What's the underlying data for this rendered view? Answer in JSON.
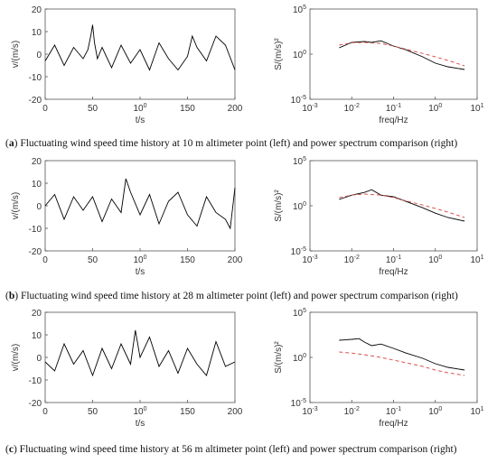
{
  "captions": [
    {
      "letter": "a",
      "text": "Fluctuating wind speed time history at 10 m altimeter point (left) and power spectrum comparison (right)"
    },
    {
      "letter": "b",
      "text": "Fluctuating wind speed time history at 28 m altimeter point (left) and power spectrum comparison (right)"
    },
    {
      "letter": "c",
      "text": "Fluctuating wind speed time history at 56 m altimeter point (left) and power spectrum comparison (right)"
    }
  ],
  "chart_data": [
    {
      "panel": "a",
      "type": "line",
      "plot": "time-history",
      "xlabel": "t/s",
      "ylabel": "v/(m/s)",
      "xlim": [
        0,
        200
      ],
      "ylim": [
        -20,
        20
      ],
      "xticks": [
        "0",
        "50",
        "100",
        "150",
        "200"
      ],
      "yticks": [
        "20",
        "10",
        "0",
        "-10",
        "-20"
      ],
      "series": [
        {
          "color": "#000000",
          "x": [
            0,
            10,
            20,
            30,
            40,
            45,
            48,
            50,
            52,
            55,
            60,
            70,
            80,
            90,
            100,
            110,
            120,
            130,
            140,
            150,
            155,
            160,
            170,
            180,
            190,
            200
          ],
          "y": [
            -3,
            4,
            -5,
            3,
            -2,
            2,
            8,
            13,
            5,
            -2,
            3,
            -6,
            4,
            -4,
            2,
            -7,
            5,
            -2,
            -7,
            -1,
            8,
            3,
            -3,
            8,
            4,
            -7
          ]
        }
      ]
    },
    {
      "panel": "a",
      "type": "line",
      "plot": "spectrum",
      "xlabel": "freq/Hz",
      "ylabel": "S/(m/s)²",
      "xscale": "log",
      "yscale": "log",
      "xlim": [
        0.001,
        10
      ],
      "ylim": [
        1e-05,
        100000
      ],
      "xticks": [
        "10-3",
        "10-2",
        "10-1",
        "100",
        "101"
      ],
      "yticks": [
        "105",
        "100",
        "10-5"
      ],
      "series": [
        {
          "style": "solid",
          "color": "#000000",
          "x": [
            0.005,
            0.01,
            0.02,
            0.03,
            0.05,
            0.1,
            0.2,
            0.5,
            1,
            2,
            5
          ],
          "y": [
            5,
            20,
            25,
            20,
            30,
            8,
            3,
            0.5,
            0.1,
            0.04,
            0.02
          ]
        },
        {
          "style": "dashed",
          "color": "#d9534f",
          "x": [
            0.005,
            0.01,
            0.02,
            0.05,
            0.1,
            0.5,
            1,
            2,
            5
          ],
          "y": [
            10,
            18,
            20,
            15,
            8,
            1.2,
            0.5,
            0.2,
            0.05
          ]
        }
      ]
    },
    {
      "panel": "b",
      "type": "line",
      "plot": "time-history",
      "xlabel": "t/s",
      "ylabel": "v/(m/s)",
      "xlim": [
        0,
        200
      ],
      "ylim": [
        -20,
        20
      ],
      "xticks": [
        "0",
        "50",
        "100",
        "150",
        "200"
      ],
      "yticks": [
        "20",
        "10",
        "0",
        "-10",
        "-20"
      ],
      "series": [
        {
          "color": "#000000",
          "x": [
            0,
            10,
            20,
            30,
            40,
            50,
            60,
            70,
            80,
            85,
            90,
            100,
            110,
            120,
            130,
            140,
            150,
            160,
            170,
            180,
            190,
            195,
            200
          ],
          "y": [
            0,
            5,
            -6,
            4,
            -2,
            4,
            -7,
            3,
            -3,
            12,
            6,
            -4,
            5,
            -8,
            2,
            6,
            -4,
            -9,
            4,
            -3,
            -6,
            -10,
            8
          ]
        }
      ]
    },
    {
      "panel": "b",
      "type": "line",
      "plot": "spectrum",
      "xlabel": "freq/Hz",
      "ylabel": "S/(m/s)²",
      "xscale": "log",
      "yscale": "log",
      "xlim": [
        0.001,
        10
      ],
      "ylim": [
        1e-05,
        100000
      ],
      "xticks": [
        "10-3",
        "10-2",
        "10-1",
        "100",
        "101"
      ],
      "yticks": [
        "105",
        "100",
        "10-5"
      ],
      "series": [
        {
          "style": "solid",
          "color": "#000000",
          "x": [
            0.005,
            0.01,
            0.02,
            0.03,
            0.05,
            0.1,
            0.2,
            0.5,
            1,
            2,
            5
          ],
          "y": [
            5,
            15,
            30,
            60,
            15,
            10,
            3,
            0.6,
            0.15,
            0.05,
            0.02
          ]
        },
        {
          "style": "dashed",
          "color": "#d9534f",
          "x": [
            0.005,
            0.01,
            0.02,
            0.05,
            0.1,
            0.5,
            1,
            2,
            5
          ],
          "y": [
            8,
            15,
            20,
            15,
            8,
            1.2,
            0.5,
            0.2,
            0.05
          ]
        }
      ]
    },
    {
      "panel": "c",
      "type": "line",
      "plot": "time-history",
      "xlabel": "t/s",
      "ylabel": "v/(m/s)",
      "xlim": [
        0,
        200
      ],
      "ylim": [
        -20,
        20
      ],
      "xticks": [
        "0",
        "50",
        "100",
        "150",
        "200"
      ],
      "yticks": [
        "20",
        "10",
        "0",
        "-10",
        "-20"
      ],
      "series": [
        {
          "color": "#000000",
          "x": [
            0,
            10,
            20,
            30,
            40,
            50,
            60,
            70,
            80,
            90,
            95,
            100,
            110,
            120,
            130,
            140,
            150,
            160,
            170,
            180,
            190,
            200
          ],
          "y": [
            -2,
            -6,
            6,
            -3,
            3,
            -8,
            4,
            -5,
            6,
            -3,
            12,
            0,
            9,
            -4,
            3,
            -7,
            4,
            -3,
            -8,
            7,
            -4,
            -2
          ]
        }
      ]
    },
    {
      "panel": "c",
      "type": "line",
      "plot": "spectrum",
      "xlabel": "freq/Hz",
      "ylabel": "S/(m/s)²",
      "xscale": "log",
      "yscale": "log",
      "xlim": [
        0.001,
        10
      ],
      "ylim": [
        1e-05,
        100000
      ],
      "xticks": [
        "10-3",
        "10-2",
        "10-1",
        "100",
        "101"
      ],
      "yticks": [
        "105",
        "100",
        "10-5"
      ],
      "series": [
        {
          "style": "solid",
          "color": "#000000",
          "x": [
            0.005,
            0.01,
            0.015,
            0.02,
            0.03,
            0.05,
            0.1,
            0.2,
            0.5,
            1,
            2,
            5
          ],
          "y": [
            80,
            100,
            120,
            50,
            20,
            30,
            10,
            3,
            0.8,
            0.2,
            0.08,
            0.04
          ]
        },
        {
          "style": "dashed",
          "color": "#d9534f",
          "x": [
            0.005,
            0.01,
            0.02,
            0.05,
            0.1,
            0.5,
            1,
            2,
            5
          ],
          "y": [
            4,
            3,
            2,
            1,
            0.5,
            0.1,
            0.04,
            0.02,
            0.01
          ]
        }
      ]
    }
  ]
}
